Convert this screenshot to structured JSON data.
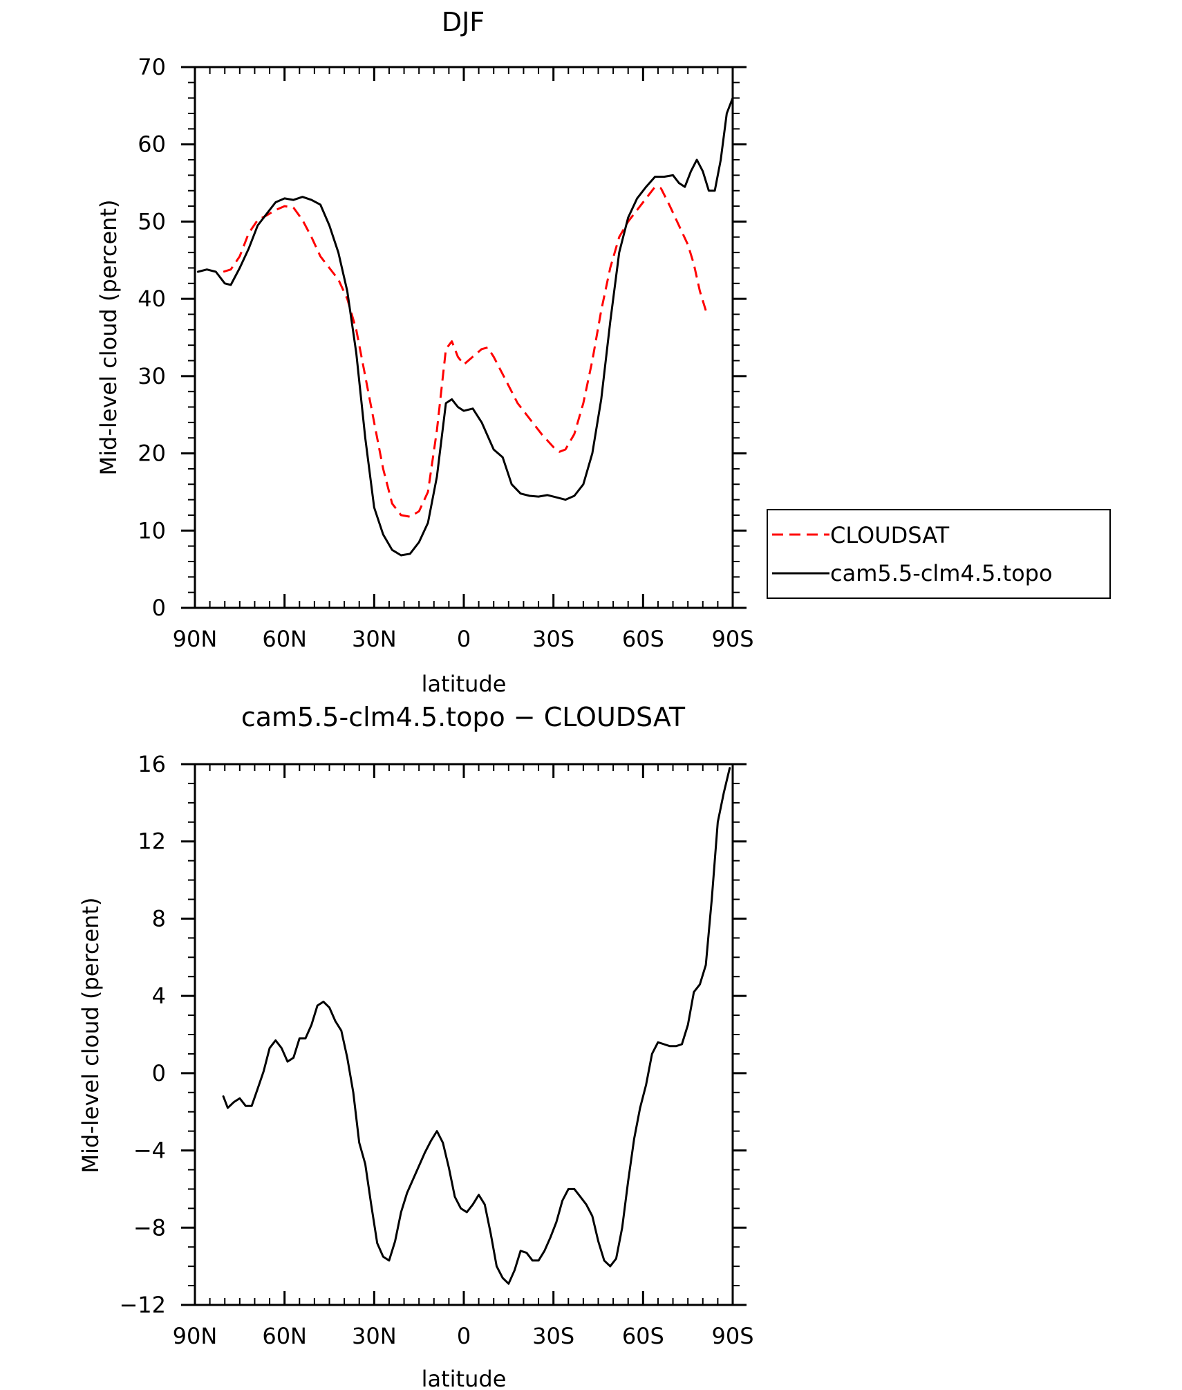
{
  "chart_data": [
    {
      "type": "line",
      "title": "DJF",
      "xlabel": "latitude",
      "ylabel": "Mid-level cloud (percent)",
      "xlim": [
        -90,
        90
      ],
      "ylim": [
        0,
        70
      ],
      "x_ticks": [
        -90,
        -60,
        -30,
        0,
        30,
        60,
        90
      ],
      "x_tick_labels": [
        "90N",
        "60N",
        "30N",
        "0",
        "30S",
        "60S",
        "90S"
      ],
      "y_ticks": [
        0,
        10,
        20,
        30,
        40,
        50,
        60,
        70
      ],
      "y_tick_labels": [
        "0",
        "10",
        "20",
        "30",
        "40",
        "50",
        "60",
        "70"
      ],
      "legend": {
        "placement": "right",
        "entries": [
          "CLOUDSAT",
          "cam5.5-clm4.5.topo"
        ]
      },
      "series": [
        {
          "name": "CLOUDSAT",
          "color": "#ff0000",
          "dash": "dashed",
          "points": [
            [
              -80.5,
              43.5
            ],
            [
              -78,
              43.8
            ],
            [
              -75,
              45.5
            ],
            [
              -72,
              48.5
            ],
            [
              -69,
              50.2
            ],
            [
              -66,
              50.8
            ],
            [
              -63,
              51.5
            ],
            [
              -60,
              52
            ],
            [
              -57,
              51.8
            ],
            [
              -54,
              50.2
            ],
            [
              -51,
              48
            ],
            [
              -48,
              45.5
            ],
            [
              -45,
              44
            ],
            [
              -42,
              42.5
            ],
            [
              -39,
              40
            ],
            [
              -36,
              36
            ],
            [
              -33,
              30
            ],
            [
              -30,
              24
            ],
            [
              -27,
              18
            ],
            [
              -24,
              13.5
            ],
            [
              -21,
              12
            ],
            [
              -18,
              11.8
            ],
            [
              -15,
              12.5
            ],
            [
              -12,
              15
            ],
            [
              -9,
              23
            ],
            [
              -6,
              33.5
            ],
            [
              -4,
              34.5
            ],
            [
              -2,
              32.5
            ],
            [
              0,
              31.5
            ],
            [
              3,
              32.5
            ],
            [
              6,
              33.5
            ],
            [
              8,
              33.7
            ],
            [
              10,
              32.5
            ],
            [
              14,
              29.5
            ],
            [
              18,
              26.5
            ],
            [
              22,
              24.5
            ],
            [
              26,
              22.5
            ],
            [
              30,
              20.8
            ],
            [
              32,
              20.2
            ],
            [
              34,
              20.5
            ],
            [
              37,
              22.5
            ],
            [
              40,
              26.5
            ],
            [
              43,
              32
            ],
            [
              46,
              38.5
            ],
            [
              49,
              44
            ],
            [
              52,
              48
            ],
            [
              55,
              50
            ],
            [
              58,
              51.5
            ],
            [
              61,
              53
            ],
            [
              64,
              54.5
            ],
            [
              66,
              54.3
            ],
            [
              69,
              52
            ],
            [
              72,
              49.5
            ],
            [
              75,
              47
            ],
            [
              77,
              44.5
            ],
            [
              79,
              41
            ],
            [
              81,
              38.5
            ]
          ]
        },
        {
          "name": "cam5.5-clm4.5.topo",
          "color": "#000000",
          "dash": "solid",
          "points": [
            [
              -89,
              43.5
            ],
            [
              -86,
              43.8
            ],
            [
              -83,
              43.5
            ],
            [
              -80,
              42
            ],
            [
              -78,
              41.8
            ],
            [
              -75,
              44
            ],
            [
              -72,
              46.5
            ],
            [
              -69,
              49.5
            ],
            [
              -66,
              51
            ],
            [
              -63,
              52.5
            ],
            [
              -60,
              53
            ],
            [
              -57,
              52.8
            ],
            [
              -54,
              53.2
            ],
            [
              -51,
              52.8
            ],
            [
              -48,
              52.2
            ],
            [
              -45,
              49.5
            ],
            [
              -42,
              46
            ],
            [
              -39,
              41
            ],
            [
              -36,
              33
            ],
            [
              -33,
              22
            ],
            [
              -30,
              13
            ],
            [
              -27,
              9.5
            ],
            [
              -24,
              7.5
            ],
            [
              -21,
              6.8
            ],
            [
              -18,
              7
            ],
            [
              -15,
              8.5
            ],
            [
              -12,
              11
            ],
            [
              -9,
              17
            ],
            [
              -6,
              26.5
            ],
            [
              -4,
              27
            ],
            [
              -2,
              26
            ],
            [
              0,
              25.5
            ],
            [
              3,
              25.8
            ],
            [
              6,
              24
            ],
            [
              10,
              20.5
            ],
            [
              13,
              19.5
            ],
            [
              16,
              16
            ],
            [
              19,
              14.8
            ],
            [
              22,
              14.5
            ],
            [
              25,
              14.4
            ],
            [
              28,
              14.6
            ],
            [
              31,
              14.3
            ],
            [
              34,
              14
            ],
            [
              37,
              14.5
            ],
            [
              40,
              16
            ],
            [
              43,
              20
            ],
            [
              46,
              27
            ],
            [
              49,
              37
            ],
            [
              52,
              46
            ],
            [
              55,
              50.5
            ],
            [
              58,
              53
            ],
            [
              61,
              54.5
            ],
            [
              64,
              55.8
            ],
            [
              67,
              55.8
            ],
            [
              70,
              56
            ],
            [
              72,
              55
            ],
            [
              74,
              54.5
            ],
            [
              76,
              56.5
            ],
            [
              78,
              58
            ],
            [
              80,
              56.5
            ],
            [
              82,
              54
            ],
            [
              84,
              54
            ],
            [
              86,
              58
            ],
            [
              88,
              64
            ],
            [
              90,
              66
            ]
          ]
        }
      ]
    },
    {
      "type": "line",
      "title": "cam5.5-clm4.5.topo − CLOUDSAT",
      "xlabel": "latitude",
      "ylabel": "Mid-level cloud (percent)",
      "xlim": [
        -90,
        90
      ],
      "ylim": [
        -12,
        16
      ],
      "x_ticks": [
        -90,
        -60,
        -30,
        0,
        30,
        60,
        90
      ],
      "x_tick_labels": [
        "90N",
        "60N",
        "30N",
        "0",
        "30S",
        "60S",
        "90S"
      ],
      "y_ticks": [
        -12,
        -8,
        -4,
        0,
        4,
        8,
        12,
        16
      ],
      "y_tick_labels": [
        "−12",
        "−8",
        "−4",
        "0",
        "4",
        "8",
        "12",
        "16"
      ],
      "series": [
        {
          "color": "#000000",
          "dash": "solid",
          "points": [
            [
              -80.5,
              -1.2
            ],
            [
              -79,
              -1.8
            ],
            [
              -77,
              -1.5
            ],
            [
              -75,
              -1.3
            ],
            [
              -73,
              -1.7
            ],
            [
              -71,
              -1.7
            ],
            [
              -69,
              -0.8
            ],
            [
              -67,
              0.1
            ],
            [
              -65,
              1.3
            ],
            [
              -63,
              1.7
            ],
            [
              -61,
              1.3
            ],
            [
              -59,
              0.6
            ],
            [
              -57,
              0.8
            ],
            [
              -55,
              1.8
            ],
            [
              -53,
              1.8
            ],
            [
              -51,
              2.5
            ],
            [
              -49,
              3.5
            ],
            [
              -47,
              3.7
            ],
            [
              -45,
              3.4
            ],
            [
              -43,
              2.7
            ],
            [
              -41,
              2.2
            ],
            [
              -39,
              0.8
            ],
            [
              -37,
              -1
            ],
            [
              -35,
              -3.6
            ],
            [
              -33,
              -4.7
            ],
            [
              -31,
              -6.8
            ],
            [
              -29,
              -8.8
            ],
            [
              -27,
              -9.5
            ],
            [
              -25,
              -9.7
            ],
            [
              -23,
              -8.7
            ],
            [
              -21,
              -7.2
            ],
            [
              -19,
              -6.2
            ],
            [
              -17,
              -5.5
            ],
            [
              -15,
              -4.8
            ],
            [
              -13,
              -4.1
            ],
            [
              -11,
              -3.5
            ],
            [
              -9,
              -3
            ],
            [
              -7,
              -3.6
            ],
            [
              -5,
              -4.9
            ],
            [
              -3,
              -6.4
            ],
            [
              -1,
              -7
            ],
            [
              1,
              -7.2
            ],
            [
              3,
              -6.8
            ],
            [
              5,
              -6.3
            ],
            [
              7,
              -6.8
            ],
            [
              9,
              -8.3
            ],
            [
              11,
              -10
            ],
            [
              13,
              -10.6
            ],
            [
              15,
              -10.9
            ],
            [
              17,
              -10.2
            ],
            [
              19,
              -9.2
            ],
            [
              21,
              -9.3
            ],
            [
              23,
              -9.7
            ],
            [
              25,
              -9.7
            ],
            [
              27,
              -9.2
            ],
            [
              29,
              -8.5
            ],
            [
              31,
              -7.7
            ],
            [
              33,
              -6.6
            ],
            [
              35,
              -6
            ],
            [
              37,
              -6
            ],
            [
              39,
              -6.4
            ],
            [
              41,
              -6.8
            ],
            [
              43,
              -7.4
            ],
            [
              45,
              -8.7
            ],
            [
              47,
              -9.7
            ],
            [
              49,
              -10
            ],
            [
              51,
              -9.6
            ],
            [
              53,
              -8
            ],
            [
              55,
              -5.6
            ],
            [
              57,
              -3.4
            ],
            [
              59,
              -1.8
            ],
            [
              61,
              -0.6
            ],
            [
              63,
              1
            ],
            [
              65,
              1.6
            ],
            [
              67,
              1.5
            ],
            [
              69,
              1.4
            ],
            [
              71,
              1.4
            ],
            [
              73,
              1.5
            ],
            [
              75,
              2.5
            ],
            [
              77,
              4.2
            ],
            [
              79,
              4.6
            ],
            [
              81,
              5.6
            ],
            [
              83,
              9
            ],
            [
              85,
              13
            ],
            [
              87,
              14.5
            ],
            [
              89,
              15.8
            ]
          ]
        }
      ]
    }
  ]
}
